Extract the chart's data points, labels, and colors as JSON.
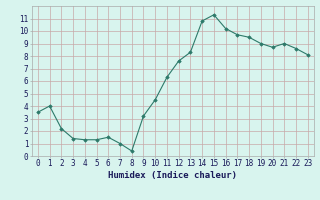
{
  "x": [
    0,
    1,
    2,
    3,
    4,
    5,
    6,
    7,
    8,
    9,
    10,
    11,
    12,
    13,
    14,
    15,
    16,
    17,
    18,
    19,
    20,
    21,
    22,
    23
  ],
  "y": [
    3.5,
    4.0,
    2.2,
    1.4,
    1.3,
    1.3,
    1.5,
    1.0,
    0.4,
    3.2,
    4.5,
    6.3,
    7.6,
    8.3,
    10.8,
    11.3,
    10.2,
    9.7,
    9.5,
    9.0,
    8.7,
    9.0,
    8.6,
    8.1
  ],
  "xlabel": "Humidex (Indice chaleur)",
  "xlim": [
    -0.5,
    23.5
  ],
  "ylim": [
    0,
    12
  ],
  "yticks": [
    0,
    1,
    2,
    3,
    4,
    5,
    6,
    7,
    8,
    9,
    10,
    11
  ],
  "xticks": [
    0,
    1,
    2,
    3,
    4,
    5,
    6,
    7,
    8,
    9,
    10,
    11,
    12,
    13,
    14,
    15,
    16,
    17,
    18,
    19,
    20,
    21,
    22,
    23
  ],
  "line_color": "#2d7a6a",
  "marker": "D",
  "marker_size": 1.8,
  "bg_color": "#d8f4ee",
  "grid_color": "#c8a8a8",
  "axes_color": "#aaaaaa",
  "font_color": "#1a1a5a",
  "xlabel_fontsize": 6.5,
  "tick_fontsize": 5.5,
  "linewidth": 0.8
}
